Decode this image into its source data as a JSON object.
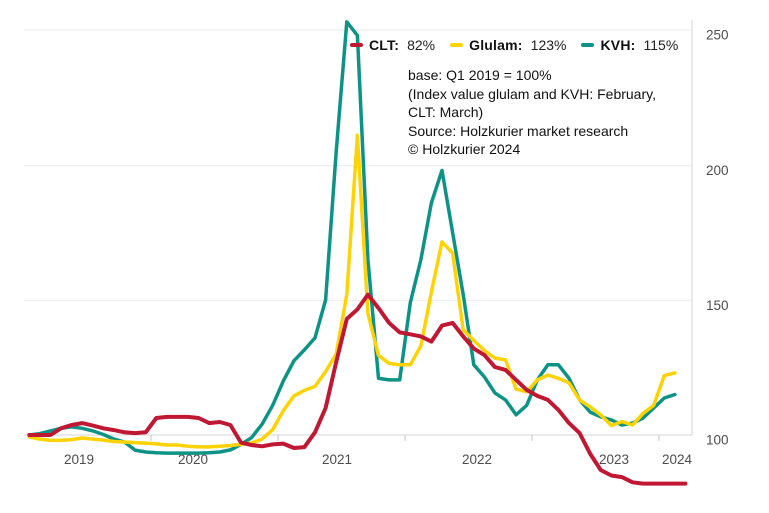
{
  "legend": {
    "items": [
      {
        "id": "clt",
        "label": "CLT:",
        "value": "82%",
        "color": "#c01733"
      },
      {
        "id": "glulam",
        "label": "Glulam:",
        "value": "123%",
        "color": "#fdd306"
      },
      {
        "id": "kvh",
        "label": "KVH:",
        "value": "115%",
        "color": "#0d9386"
      }
    ]
  },
  "annotations": {
    "line1": "base: Q1 2019 = 100%",
    "line2": "(Index value glulam and KVH: February,",
    "line3": "CLT: March)",
    "line4": "Source: Holzkurier market research",
    "line5": "© Holzkurier 2024"
  },
  "chart_data": {
    "type": "line",
    "x_unit": "month",
    "x_start": "2019-01",
    "x_end_clt": "2024-03",
    "x_end_glulam_kvh": "2024-02",
    "x_tick_labels": [
      "2019",
      "2020",
      "2021",
      "2022",
      "2023",
      "2024"
    ],
    "y_tick_labels": [
      "100",
      "150",
      "200",
      "250"
    ],
    "y_ticks": [
      100,
      150,
      200,
      250
    ],
    "ylim": [
      80,
      255
    ],
    "grid": true,
    "legend_position": "top",
    "base_note": "Q1 2019 = 100%",
    "series": [
      {
        "name": "KVH",
        "color": "#0d9386",
        "end_value_pct": 115,
        "values": [
          100,
          100.5,
          101.5,
          102.5,
          103,
          102.5,
          101.5,
          100.2,
          98.5,
          97.4,
          94.4,
          93.7,
          93.4,
          93.3,
          93.3,
          93.3,
          93.3,
          93.4,
          93.7,
          94.5,
          96.5,
          99,
          104,
          111,
          120,
          127.5,
          131.5,
          136,
          150,
          205,
          253,
          248,
          165,
          121,
          120.4,
          120.4,
          149,
          165,
          186,
          198,
          175,
          152,
          126,
          121.5,
          115.6,
          113,
          107.5,
          111,
          120.4,
          126,
          126,
          121,
          113,
          108.5,
          106.7,
          105.6,
          103.7,
          104.4,
          106.3,
          110,
          113.7,
          115
        ]
      },
      {
        "name": "Glulam",
        "color": "#fdd306",
        "end_value_pct": 123,
        "values": [
          99.3,
          98.5,
          98,
          98,
          98.3,
          98.9,
          98.5,
          98.1,
          97.6,
          97.4,
          97.2,
          97,
          96.7,
          96.3,
          96.3,
          95.8,
          95.6,
          95.6,
          95.8,
          96.1,
          96.5,
          97,
          98.5,
          102,
          109,
          114.5,
          116.5,
          118,
          123.5,
          130,
          152,
          211,
          145,
          129.5,
          126.5,
          126,
          126,
          133,
          153,
          171.5,
          167.4,
          139,
          135,
          131.3,
          128.5,
          127.8,
          117,
          116,
          120.4,
          122.2,
          121,
          119.3,
          113,
          110.4,
          107.4,
          103.5,
          105,
          103.7,
          108,
          111,
          122,
          123
        ]
      },
      {
        "name": "CLT",
        "color": "#c01733",
        "end_value_pct": 82,
        "values": [
          100,
          100,
          100,
          102.5,
          103.7,
          104.4,
          103.5,
          102.5,
          101.8,
          101,
          100.7,
          101,
          106.3,
          106.7,
          106.7,
          106.7,
          106.3,
          104.4,
          104.8,
          103.7,
          97.2,
          96.3,
          95.8,
          96.5,
          96.8,
          95.2,
          95.5,
          101,
          110,
          127,
          143,
          146.5,
          152,
          147,
          141.5,
          138,
          137.3,
          136.5,
          134.6,
          140.5,
          141.5,
          136.5,
          132,
          129.6,
          125.2,
          124.1,
          120.4,
          116.7,
          114.5,
          113,
          109.3,
          104.4,
          100.7,
          93,
          87,
          85,
          84.4,
          82.5,
          82,
          82,
          82,
          82,
          82
        ]
      }
    ]
  }
}
